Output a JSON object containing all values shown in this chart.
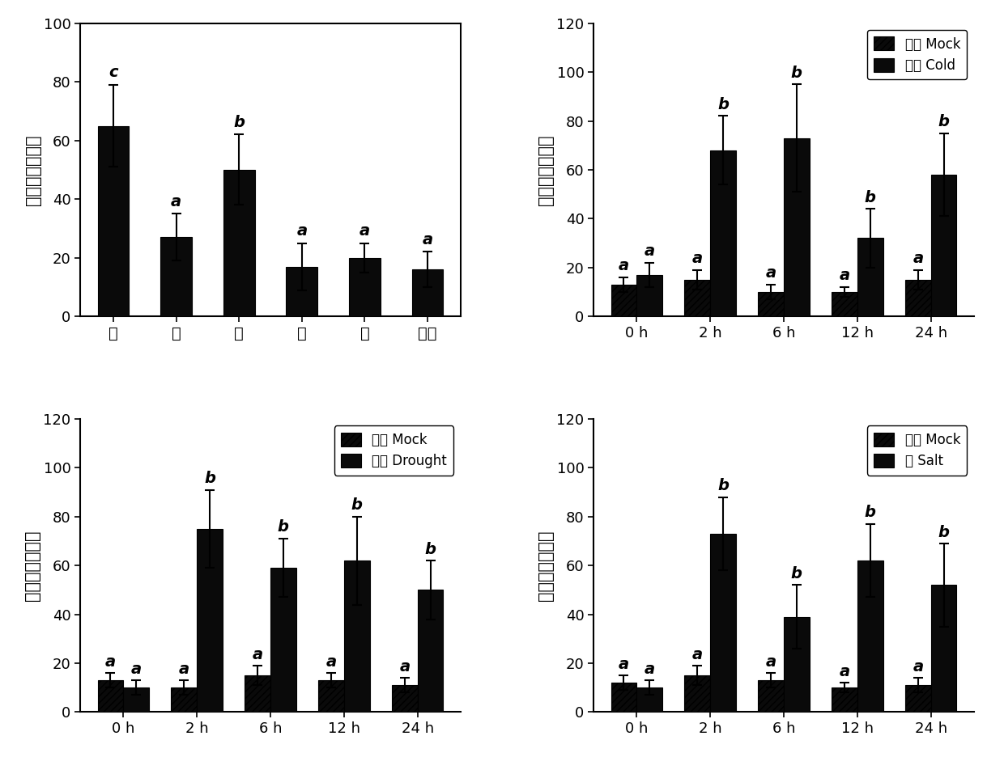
{
  "panel_A": {
    "categories": [
      "根",
      "茎",
      "叶",
      "花",
      "果",
      "卷须"
    ],
    "values": [
      65,
      27,
      50,
      17,
      20,
      16
    ],
    "errors": [
      14,
      8,
      12,
      8,
      5,
      6
    ],
    "letters": [
      "c",
      "a",
      "b",
      "a",
      "a",
      "a"
    ],
    "ylabel": "基因相对表达量",
    "ylim": [
      0,
      100
    ],
    "yticks": [
      0,
      20,
      40,
      60,
      80,
      100
    ],
    "bar_color": "#0a0a0a"
  },
  "panel_B": {
    "timepoints": [
      "0 h",
      "2 h",
      "6 h",
      "12 h",
      "24 h"
    ],
    "mock_values": [
      13,
      15,
      10,
      10,
      15
    ],
    "mock_errors": [
      3,
      4,
      3,
      2,
      4
    ],
    "treatment_values": [
      17,
      68,
      73,
      32,
      58
    ],
    "treatment_errors": [
      5,
      14,
      22,
      12,
      17
    ],
    "mock_letters": [
      "a",
      "a",
      "a",
      "a",
      "a"
    ],
    "treatment_letters": [
      "a",
      "b",
      "b",
      "b",
      "b"
    ],
    "legend_mock": "对照 Mock",
    "legend_treatment": "低温 Cold",
    "ylabel": "基因相对表达量",
    "ylim": [
      0,
      120
    ],
    "yticks": [
      0,
      20,
      40,
      60,
      80,
      100,
      120
    ],
    "bar_color_mock": "#0a0a0a",
    "bar_color_treatment": "#0a0a0a"
  },
  "panel_C": {
    "timepoints": [
      "0 h",
      "2 h",
      "6 h",
      "12 h",
      "24 h"
    ],
    "mock_values": [
      13,
      10,
      15,
      13,
      11
    ],
    "mock_errors": [
      3,
      3,
      4,
      3,
      3
    ],
    "treatment_values": [
      10,
      75,
      59,
      62,
      50
    ],
    "treatment_errors": [
      3,
      16,
      12,
      18,
      12
    ],
    "mock_letters": [
      "a",
      "a",
      "a",
      "a",
      "a"
    ],
    "treatment_letters": [
      "a",
      "b",
      "b",
      "b",
      "b"
    ],
    "legend_mock": "对照 Mock",
    "legend_treatment": "干旱 Drought",
    "ylabel": "基因相对表达量",
    "ylim": [
      0,
      120
    ],
    "yticks": [
      0,
      20,
      40,
      60,
      80,
      100,
      120
    ],
    "bar_color_mock": "#0a0a0a",
    "bar_color_treatment": "#0a0a0a"
  },
  "panel_D": {
    "timepoints": [
      "0 h",
      "2 h",
      "6 h",
      "12 h",
      "24 h"
    ],
    "mock_values": [
      12,
      15,
      13,
      10,
      11
    ],
    "mock_errors": [
      3,
      4,
      3,
      2,
      3
    ],
    "treatment_values": [
      10,
      73,
      39,
      62,
      52
    ],
    "treatment_errors": [
      3,
      15,
      13,
      15,
      17
    ],
    "mock_letters": [
      "a",
      "a",
      "a",
      "a",
      "a"
    ],
    "treatment_letters": [
      "a",
      "b",
      "b",
      "b",
      "b"
    ],
    "legend_mock": "对照 Mock",
    "legend_treatment": "盐 Salt",
    "ylabel": "基因相对表达量",
    "ylim": [
      0,
      120
    ],
    "yticks": [
      0,
      20,
      40,
      60,
      80,
      100,
      120
    ],
    "bar_color_mock": "#0a0a0a",
    "bar_color_treatment": "#0a0a0a"
  },
  "background_color": "#ffffff",
  "font_size_label": 15,
  "font_size_tick": 13,
  "font_size_letter": 14,
  "font_size_legend": 12
}
